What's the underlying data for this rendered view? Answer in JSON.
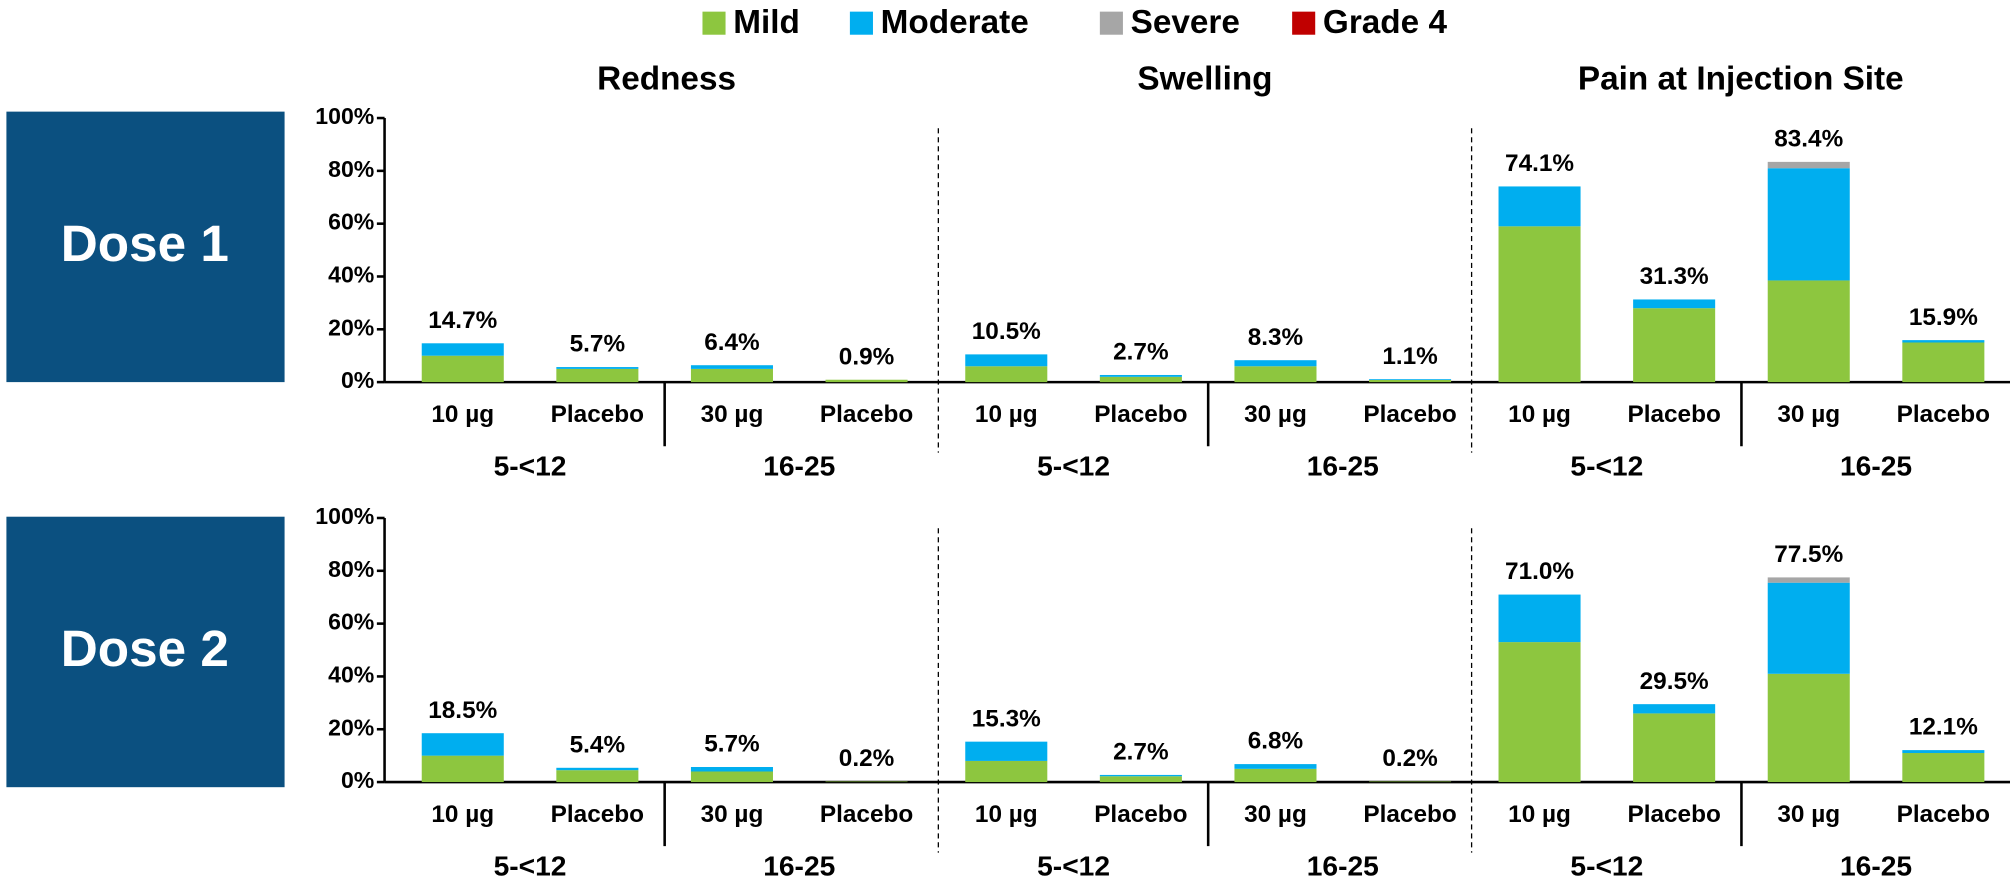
{
  "legend": [
    {
      "name": "Mild",
      "color": "#8dc63f"
    },
    {
      "name": "Moderate",
      "color": "#00aeef"
    },
    {
      "name": "Severe",
      "color": "#a6a6a6"
    },
    {
      "name": "Grade 4",
      "color": "#c00000"
    }
  ],
  "rows": [
    "Dose 1",
    "Dose 2"
  ],
  "chart_data": [
    {
      "type": "bar",
      "stacked": true,
      "title": "Redness",
      "ylim": [
        0,
        100
      ],
      "yticks": [
        {
          "value": 0,
          "label": "0%"
        },
        {
          "value": 20,
          "label": "20%"
        },
        {
          "value": 40,
          "label": "40%"
        },
        {
          "value": 60,
          "label": "60%"
        },
        {
          "value": 80,
          "label": "80%"
        },
        {
          "value": 100,
          "label": "100%"
        }
      ],
      "categories": [
        "10 µg",
        "Placebo",
        "30 µg",
        "Placebo"
      ],
      "groups": [
        "5-<12",
        "16-25"
      ],
      "series": [
        {
          "values": [
            10,
            5,
            5,
            0.9
          ]
        },
        {
          "values": [
            4.7,
            0.7,
            1.4,
            0
          ]
        },
        {
          "values": [
            0,
            0,
            0,
            0
          ]
        },
        {
          "values": [
            0,
            0,
            0,
            0
          ]
        }
      ],
      "totals": [
        14.7,
        5.7,
        6.4,
        0.9
      ],
      "total_labels": [
        "14.7%",
        "5.7%",
        "6.4%",
        "0.9%"
      ]
    },
    {
      "type": "bar",
      "stacked": true,
      "title": "Swelling",
      "categories": [
        "10 µg",
        "Placebo",
        "30 µg",
        "Placebo"
      ],
      "groups": [
        "5-<12",
        "16-25"
      ],
      "series": [
        {
          "values": [
            6,
            2,
            6,
            0.8
          ]
        },
        {
          "values": [
            4.5,
            0.7,
            2.3,
            0.3
          ]
        },
        {
          "values": [
            0,
            0,
            0,
            0
          ]
        },
        {
          "values": [
            0,
            0,
            0,
            0
          ]
        }
      ],
      "totals": [
        10.5,
        2.7,
        8.3,
        1.1
      ],
      "total_labels": [
        "10.5%",
        "2.7%",
        "8.3%",
        "1.1%"
      ]
    },
    {
      "type": "bar",
      "stacked": true,
      "title": "Pain at Injection Site",
      "categories": [
        "10 µg",
        "Placebo",
        "30 µg",
        "Placebo"
      ],
      "groups": [
        "5-<12",
        "16-25"
      ],
      "series": [
        {
          "values": [
            59,
            28,
            38.5,
            15
          ]
        },
        {
          "values": [
            15.1,
            3.3,
            42.5,
            0.9
          ]
        },
        {
          "values": [
            0,
            0,
            2.4,
            0
          ]
        },
        {
          "values": [
            0,
            0,
            0,
            0
          ]
        }
      ],
      "totals": [
        74.1,
        31.3,
        83.4,
        15.9
      ],
      "total_labels": [
        "74.1%",
        "31.3%",
        "83.4%",
        "15.9%"
      ]
    },
    {
      "type": "bar",
      "stacked": true,
      "ylim": [
        0,
        100
      ],
      "yticks": [
        {
          "value": 0,
          "label": "0%"
        },
        {
          "value": 20,
          "label": "20%"
        },
        {
          "value": 40,
          "label": "40%"
        },
        {
          "value": 60,
          "label": "60%"
        },
        {
          "value": 80,
          "label": "80%"
        },
        {
          "value": 100,
          "label": "100%"
        }
      ],
      "categories": [
        "10 µg",
        "Placebo",
        "30 µg",
        "Placebo"
      ],
      "groups": [
        "5-<12",
        "16-25"
      ],
      "series": [
        {
          "values": [
            10,
            4.5,
            4,
            0.2
          ]
        },
        {
          "values": [
            8.5,
            0.9,
            1.7,
            0
          ]
        },
        {
          "values": [
            0,
            0,
            0,
            0
          ]
        },
        {
          "values": [
            0,
            0,
            0,
            0
          ]
        }
      ],
      "totals": [
        18.5,
        5.4,
        5.7,
        0.2
      ],
      "total_labels": [
        "18.5%",
        "5.4%",
        "5.7%",
        "0.2%"
      ]
    },
    {
      "type": "bar",
      "stacked": true,
      "categories": [
        "10 µg",
        "Placebo",
        "30 µg",
        "Placebo"
      ],
      "groups": [
        "5-<12",
        "16-25"
      ],
      "series": [
        {
          "values": [
            8,
            2.2,
            5,
            0.2
          ]
        },
        {
          "values": [
            7.3,
            0.5,
            1.8,
            0
          ]
        },
        {
          "values": [
            0,
            0,
            0,
            0
          ]
        },
        {
          "values": [
            0,
            0,
            0,
            0
          ]
        }
      ],
      "totals": [
        15.3,
        2.7,
        6.8,
        0.2
      ],
      "total_labels": [
        "15.3%",
        "2.7%",
        "6.8%",
        "0.2%"
      ]
    },
    {
      "type": "bar",
      "stacked": true,
      "categories": [
        "10 µg",
        "Placebo",
        "30 µg",
        "Placebo"
      ],
      "groups": [
        "5-<12",
        "16-25"
      ],
      "series": [
        {
          "values": [
            53,
            26,
            41,
            11
          ]
        },
        {
          "values": [
            18,
            3.5,
            34.5,
            1.1
          ]
        },
        {
          "values": [
            0,
            0,
            2,
            0
          ]
        },
        {
          "values": [
            0,
            0,
            0,
            0
          ]
        }
      ],
      "totals": [
        71.0,
        29.5,
        77.5,
        12.1
      ],
      "total_labels": [
        "71.0%",
        "29.5%",
        "77.5%",
        "12.1%"
      ]
    }
  ]
}
